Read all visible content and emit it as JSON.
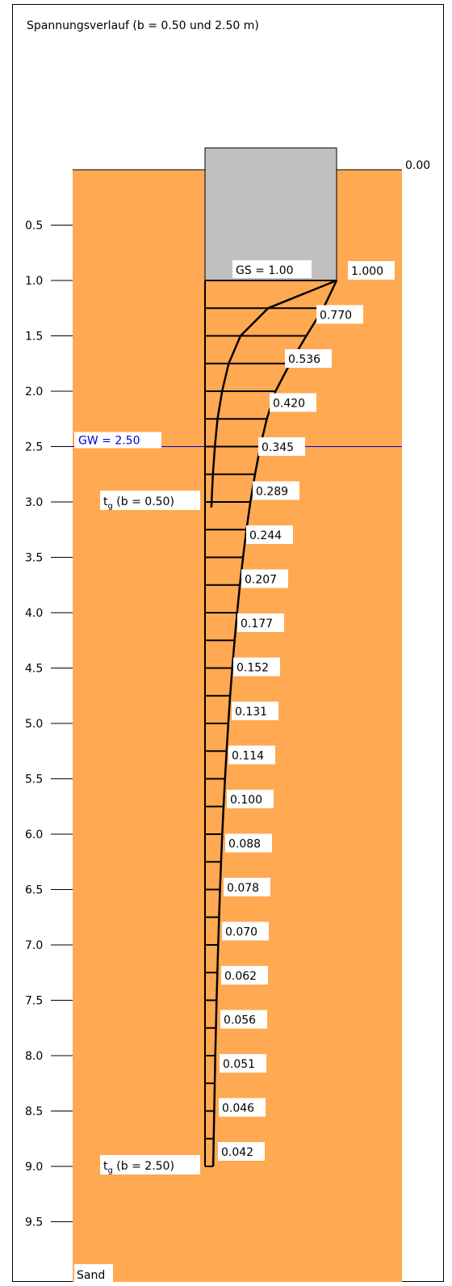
{
  "colors": {
    "soil": "#FFA952",
    "foundation": "#C0C0C0",
    "groundwater": "#0000DD",
    "line": "#000000",
    "label_bg": "#FFFFFF"
  },
  "chart_data": {
    "type": "line",
    "title": "Spannungsverlauf (b = 0.50 und 2.50 m)",
    "depth_unit": "m",
    "ylim": [
      0.0,
      10.0
    ],
    "ticks": [
      "0.5",
      "1.0",
      "1.5",
      "2.0",
      "2.5",
      "3.0",
      "3.5",
      "4.0",
      "4.5",
      "5.0",
      "5.5",
      "6.0",
      "6.5",
      "7.0",
      "7.5",
      "8.0",
      "8.5",
      "9.0",
      "9.5"
    ],
    "surface_label": "0.00",
    "foundation": {
      "label": "GS = 1.00",
      "depth": 1.0
    },
    "groundwater": {
      "label": "GW = 2.50",
      "depth": 2.5
    },
    "soil_name": "Sand",
    "curve_b250": {
      "depths": [
        1.0,
        1.25,
        1.5,
        1.75,
        2.0,
        2.25,
        2.5,
        2.75,
        3.0,
        3.25,
        3.5,
        3.75,
        4.0,
        4.25,
        4.5,
        4.75,
        5.0,
        5.25,
        5.5,
        5.75,
        6.0,
        6.25,
        6.5,
        6.75,
        7.0,
        7.25,
        7.5,
        7.75,
        8.0,
        8.25,
        8.5,
        8.75,
        9.0
      ],
      "values": [
        1.0,
        0.9,
        0.77,
        0.646,
        0.536,
        0.47,
        0.42,
        0.38,
        0.345,
        0.315,
        0.289,
        0.265,
        0.244,
        0.225,
        0.207,
        0.191,
        0.177,
        0.164,
        0.152,
        0.141,
        0.131,
        0.122,
        0.114,
        0.107,
        0.1,
        0.094,
        0.088,
        0.083,
        0.078,
        0.074,
        0.07,
        0.066,
        0.062
      ],
      "end_label": {
        "text": "t",
        "sub": "g",
        "rest": " (b = 2.50)",
        "depth": 9.0
      }
    },
    "curve_b050": {
      "depths": [
        1.0,
        1.25,
        1.5,
        1.75,
        2.0,
        2.25,
        2.5,
        2.75,
        3.0,
        3.05
      ],
      "values": [
        1.0,
        0.48,
        0.27,
        0.18,
        0.13,
        0.095,
        0.075,
        0.06,
        0.05,
        0.048
      ],
      "end_label": {
        "text": "t",
        "sub": "g",
        "rest": " (b = 0.50)",
        "depth": 3.0
      }
    },
    "value_labels": [
      {
        "depth": 1.0,
        "value": "1.000"
      },
      {
        "depth": 1.5,
        "value": "0.770"
      },
      {
        "depth": 2.0,
        "value": "0.536"
      },
      {
        "depth": 2.5,
        "value": "0.420"
      },
      {
        "depth": 3.0,
        "value": "0.345"
      },
      {
        "depth": 3.5,
        "value": "0.289"
      },
      {
        "depth": 4.0,
        "value": "0.244"
      },
      {
        "depth": 4.5,
        "value": "0.207"
      },
      {
        "depth": 5.0,
        "value": "0.177"
      },
      {
        "depth": 5.5,
        "value": "0.152"
      },
      {
        "depth": 6.0,
        "value": "0.131"
      },
      {
        "depth": 6.5,
        "value": "0.114"
      },
      {
        "depth": 7.0,
        "value": "0.100"
      },
      {
        "depth": 7.5,
        "value": "0.088"
      },
      {
        "depth": 8.0,
        "value": "0.078"
      },
      {
        "depth": 8.5,
        "value": "0.070"
      },
      {
        "depth": 9.0,
        "value": "0.062"
      },
      {
        "depth": 9.5,
        "value": "0.056"
      },
      {
        "depth": 10.0,
        "value": "0.051"
      },
      {
        "depth": 10.5,
        "value": "0.046"
      },
      {
        "depth": 11.0,
        "value": "0.042"
      }
    ]
  }
}
